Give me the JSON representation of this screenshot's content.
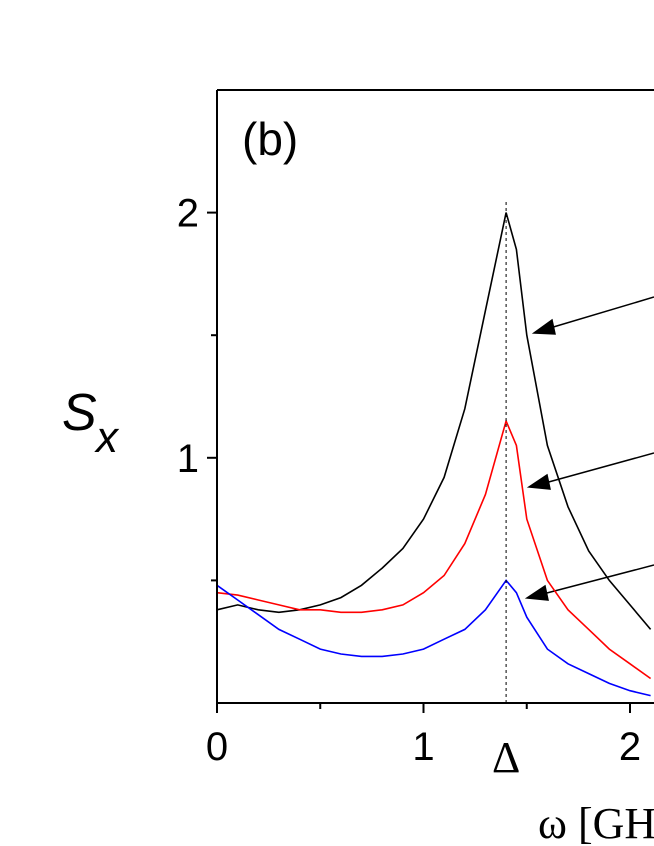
{
  "chart_data": {
    "type": "line",
    "panel_label": "(b)",
    "x_label": "ω [GHz]",
    "y_label": "S",
    "y_label_sub": "x",
    "x": [
      0,
      0.1,
      0.2,
      0.3,
      0.4,
      0.5,
      0.6,
      0.7,
      0.8,
      0.9,
      1.0,
      1.1,
      1.2,
      1.3,
      1.4,
      1.45,
      1.5,
      1.6,
      1.7,
      1.8,
      1.9,
      2.0,
      2.1
    ],
    "series": [
      {
        "color": "#000000",
        "values": [
          0.38,
          0.4,
          0.38,
          0.37,
          0.38,
          0.4,
          0.43,
          0.48,
          0.55,
          0.63,
          0.75,
          0.92,
          1.2,
          1.6,
          2.0,
          1.85,
          1.5,
          1.05,
          0.8,
          0.62,
          0.5,
          0.4,
          0.3
        ]
      },
      {
        "color": "#ff0000",
        "values": [
          0.45,
          0.44,
          0.42,
          0.4,
          0.38,
          0.38,
          0.37,
          0.37,
          0.38,
          0.4,
          0.45,
          0.52,
          0.65,
          0.85,
          1.15,
          1.05,
          0.75,
          0.5,
          0.38,
          0.3,
          0.22,
          0.16,
          0.1
        ]
      },
      {
        "color": "#0000ff",
        "values": [
          0.48,
          0.42,
          0.36,
          0.3,
          0.26,
          0.22,
          0.2,
          0.19,
          0.19,
          0.2,
          0.22,
          0.26,
          0.3,
          0.38,
          0.5,
          0.45,
          0.35,
          0.22,
          0.16,
          0.12,
          0.08,
          0.05,
          0.03
        ]
      }
    ],
    "xlim": [
      0,
      2.12
    ],
    "ylim": [
      0,
      2.5
    ],
    "xticks": [
      0,
      1,
      2
    ],
    "xminor": [
      0.5,
      1.5
    ],
    "yticks": [
      1,
      2
    ],
    "yminor": [
      0.5,
      1.5
    ],
    "marker": {
      "text": "Δ",
      "x": 1.4
    }
  }
}
